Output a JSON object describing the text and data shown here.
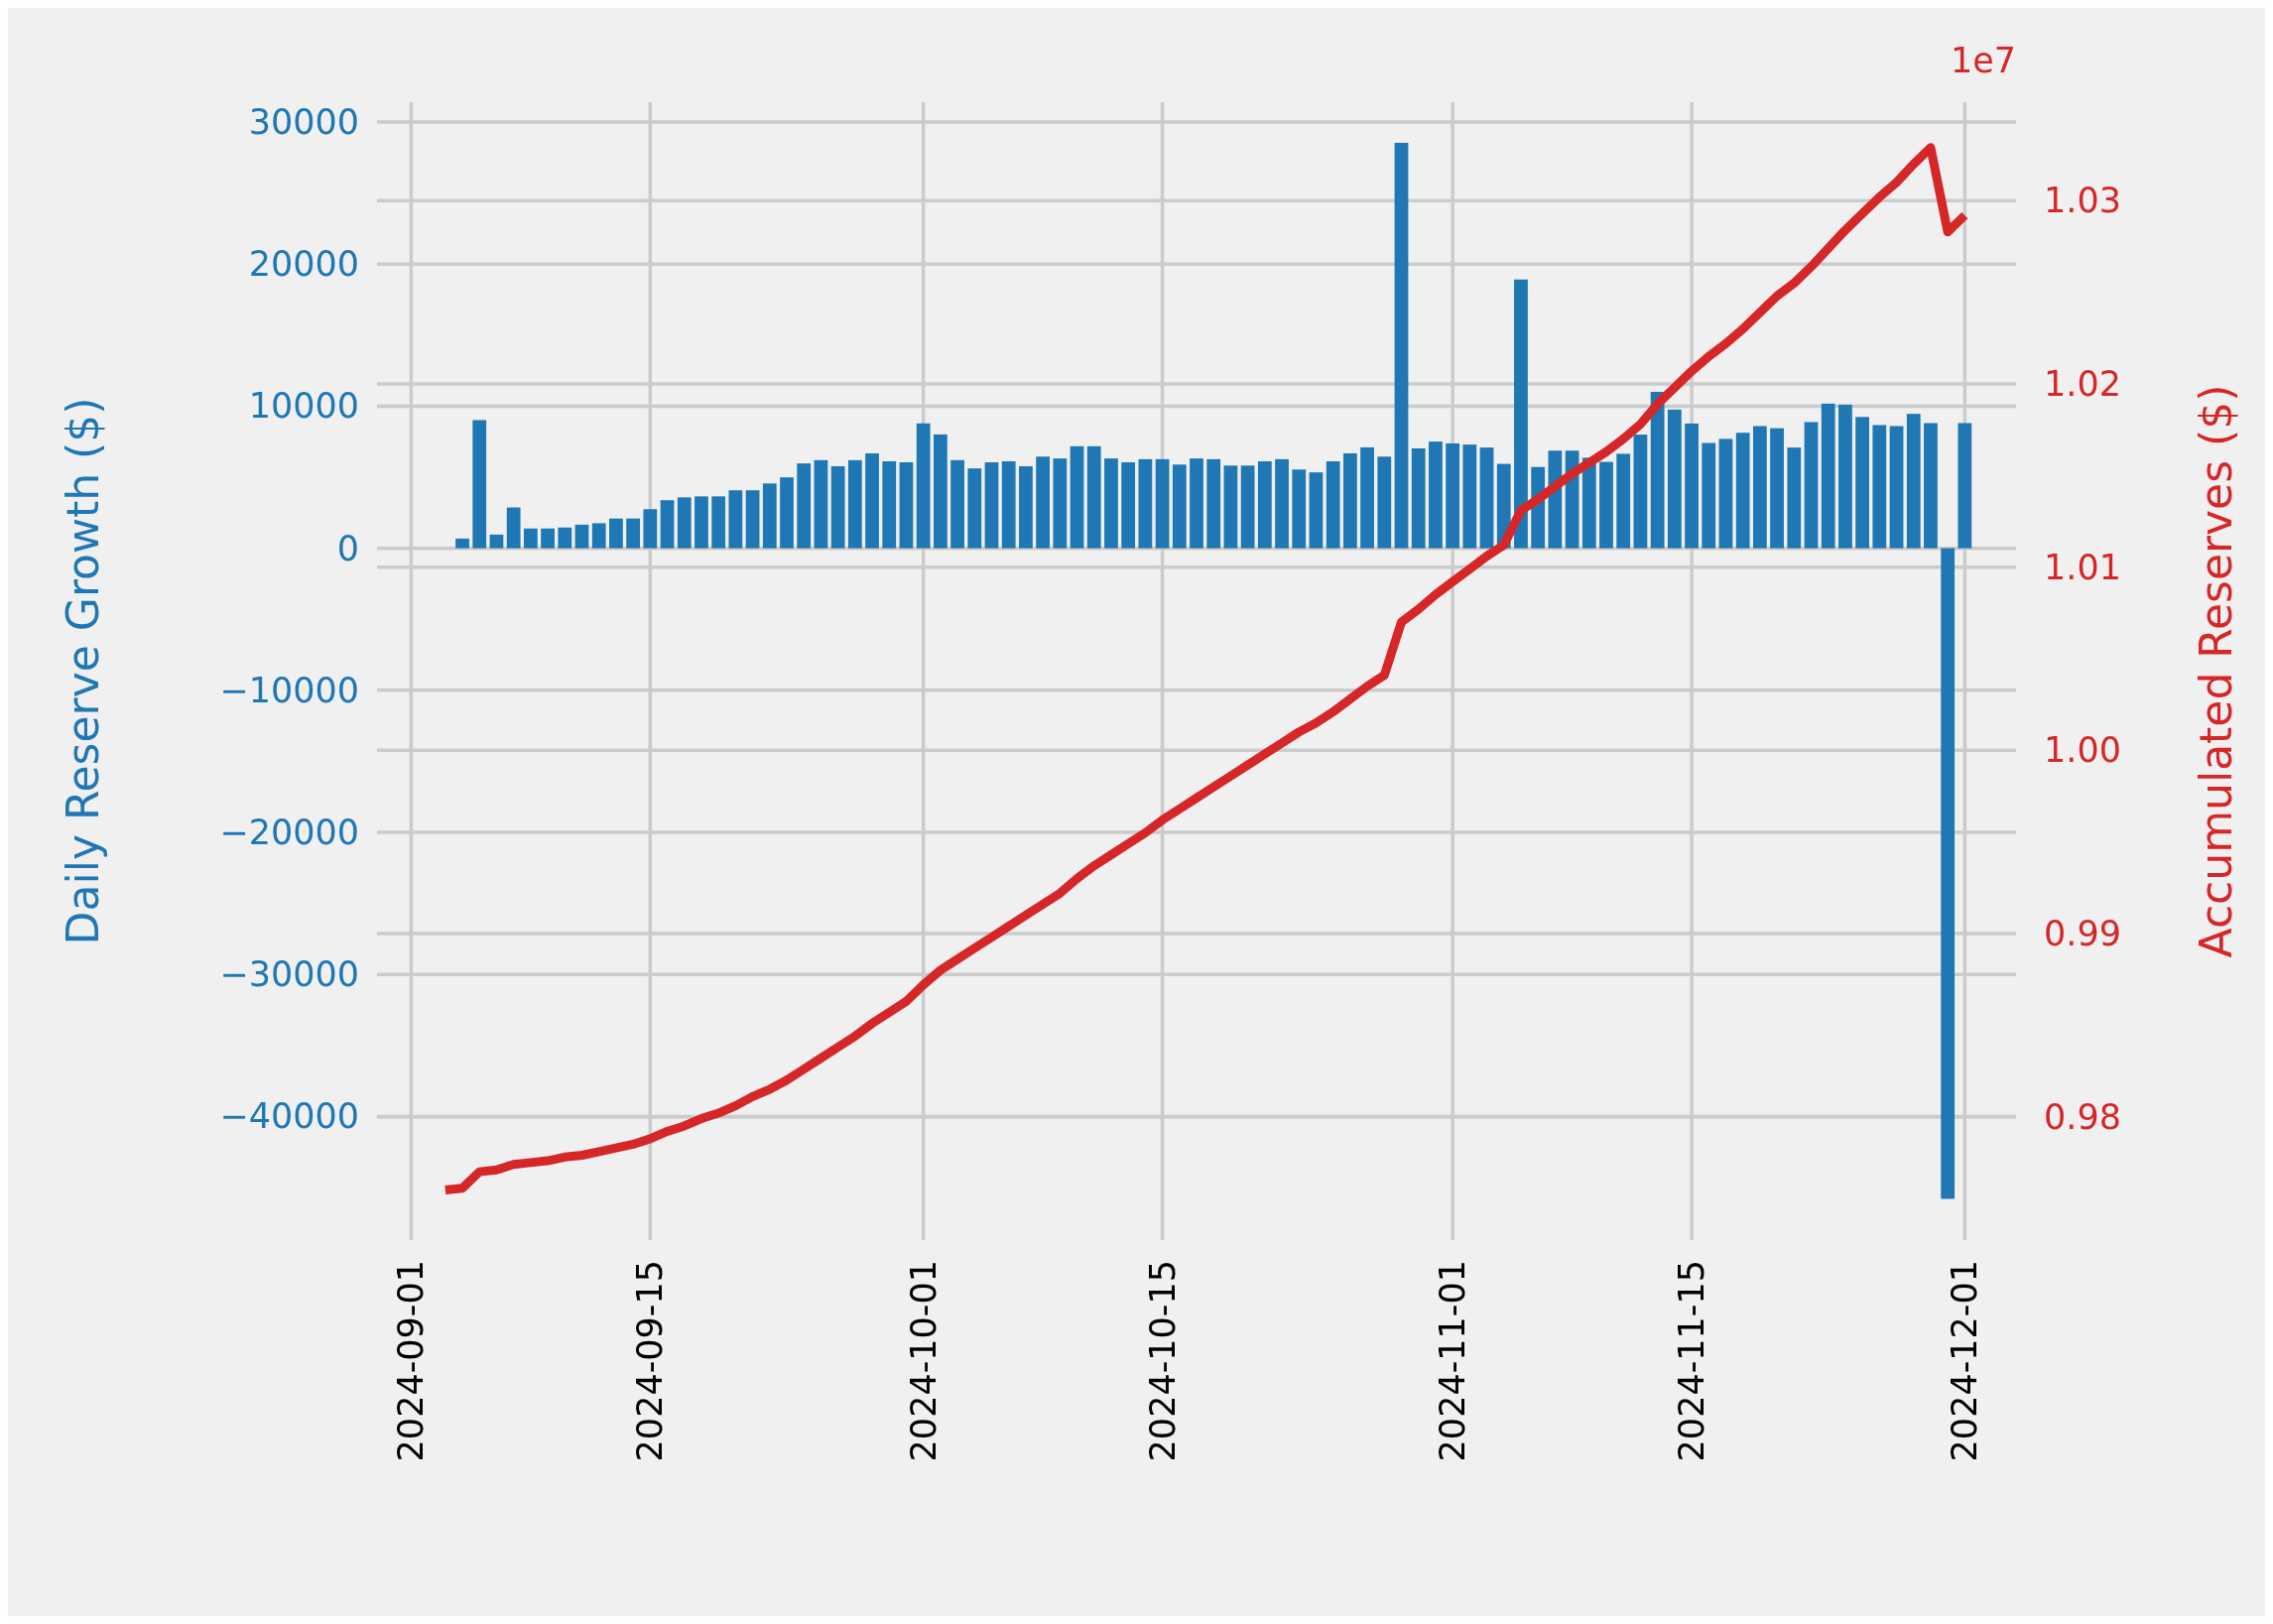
{
  "chart_data": {
    "type": "bar",
    "xlabel": null,
    "ylabel": "Daily Reserve Growth ($)",
    "y2label": "Accumulated Reserves ($)",
    "annotations": [
      "1e7"
    ],
    "grid": true,
    "xlim": [
      "2024-08-30",
      "2024-12-04"
    ],
    "xticks": [
      "2024-09-01",
      "2024-09-15",
      "2024-10-01",
      "2024-10-15",
      "2024-11-01",
      "2024-11-15",
      "2024-12-01"
    ],
    "ylim": [
      -48700,
      31400
    ],
    "yticks": [
      -40000,
      -30000,
      -20000,
      -10000,
      0,
      10000,
      20000,
      30000
    ],
    "y2lim": [
      0.97327,
      1.03538
    ],
    "y2ticks": [
      0.98,
      0.99,
      {
        "value": 1,
        "label": "1.00"
      },
      1.01,
      1.02,
      1.03
    ],
    "series": [
      {
        "color": "#1f77b4",
        "x": [
          "2024-09-04",
          "2024-09-05",
          "2024-09-06",
          "2024-09-07",
          "2024-09-08",
          "2024-09-09",
          "2024-09-10",
          "2024-09-11",
          "2024-09-12",
          "2024-09-13",
          "2024-09-14",
          "2024-09-15",
          "2024-09-16",
          "2024-09-17",
          "2024-09-18",
          "2024-09-19",
          "2024-09-20",
          "2024-09-21",
          "2024-09-22",
          "2024-09-23",
          "2024-09-24",
          "2024-09-25",
          "2024-09-26",
          "2024-09-27",
          "2024-09-28",
          "2024-09-29",
          "2024-09-30",
          "2024-10-01",
          "2024-10-02",
          "2024-10-03",
          "2024-10-04",
          "2024-10-05",
          "2024-10-06",
          "2024-10-07",
          "2024-10-08",
          "2024-10-09",
          "2024-10-10",
          "2024-10-11",
          "2024-10-12",
          "2024-10-13",
          "2024-10-14",
          "2024-10-15",
          "2024-10-16",
          "2024-10-17",
          "2024-10-18",
          "2024-10-19",
          "2024-10-20",
          "2024-10-21",
          "2024-10-22",
          "2024-10-23",
          "2024-10-24",
          "2024-10-25",
          "2024-10-26",
          "2024-10-27",
          "2024-10-28",
          "2024-10-29",
          "2024-10-30",
          "2024-10-31",
          "2024-11-01",
          "2024-11-02",
          "2024-11-03",
          "2024-11-04",
          "2024-11-05",
          "2024-11-06",
          "2024-11-07",
          "2024-11-08",
          "2024-11-09",
          "2024-11-10",
          "2024-11-11",
          "2024-11-12",
          "2024-11-13",
          "2024-11-14",
          "2024-11-15",
          "2024-11-16",
          "2024-11-17",
          "2024-11-18",
          "2024-11-19",
          "2024-11-20",
          "2024-11-21",
          "2024-11-22",
          "2024-11-23",
          "2024-11-24",
          "2024-11-25",
          "2024-11-26",
          "2024-11-27",
          "2024-11-28",
          "2024-11-29",
          "2024-11-30",
          "2024-12-01"
        ],
        "values": [
          680,
          9020,
          960,
          2870,
          1390,
          1390,
          1460,
          1660,
          1760,
          2090,
          2090,
          2750,
          3380,
          3580,
          3650,
          3650,
          4080,
          4080,
          4560,
          4990,
          5970,
          6200,
          5770,
          6200,
          6680,
          6120,
          6050,
          8790,
          8010,
          6200,
          5620,
          6050,
          6120,
          5770,
          6450,
          6320,
          7180,
          7180,
          6320,
          6050,
          6270,
          6270,
          5890,
          6320,
          6270,
          5820,
          5820,
          6120,
          6270,
          5540,
          5340,
          6120,
          6680,
          7100,
          6450,
          28540,
          7030,
          7510,
          7380,
          7300,
          7090,
          5940,
          18920,
          5720,
          6870,
          6870,
          6370,
          6080,
          6650,
          8000,
          11010,
          9760,
          8780,
          7410,
          7700,
          8130,
          8600,
          8450,
          7090,
          8880,
          10180,
          10110,
          9240,
          8670,
          8600,
          9460,
          8810,
          -45800,
          8810
        ]
      },
      {
        "type": "line",
        "axis": "y2",
        "color": "#d62728",
        "x": [
          "2024-09-03",
          "2024-09-04",
          "2024-09-05",
          "2024-09-06",
          "2024-09-07",
          "2024-09-08",
          "2024-09-09",
          "2024-09-10",
          "2024-09-11",
          "2024-09-12",
          "2024-09-13",
          "2024-09-14",
          "2024-09-15",
          "2024-09-16",
          "2024-09-17",
          "2024-09-18",
          "2024-09-19",
          "2024-09-20",
          "2024-09-21",
          "2024-09-22",
          "2024-09-23",
          "2024-09-24",
          "2024-09-25",
          "2024-09-26",
          "2024-09-27",
          "2024-09-28",
          "2024-09-29",
          "2024-09-30",
          "2024-10-01",
          "2024-10-02",
          "2024-10-03",
          "2024-10-04",
          "2024-10-05",
          "2024-10-06",
          "2024-10-07",
          "2024-10-08",
          "2024-10-09",
          "2024-10-10",
          "2024-10-11",
          "2024-10-12",
          "2024-10-13",
          "2024-10-14",
          "2024-10-15",
          "2024-10-16",
          "2024-10-17",
          "2024-10-18",
          "2024-10-19",
          "2024-10-20",
          "2024-10-21",
          "2024-10-22",
          "2024-10-23",
          "2024-10-24",
          "2024-10-25",
          "2024-10-26",
          "2024-10-27",
          "2024-10-28",
          "2024-10-29",
          "2024-10-30",
          "2024-10-31",
          "2024-11-01",
          "2024-11-02",
          "2024-11-03",
          "2024-11-04",
          "2024-11-05",
          "2024-11-06",
          "2024-11-07",
          "2024-11-08",
          "2024-11-09",
          "2024-11-10",
          "2024-11-11",
          "2024-11-12",
          "2024-11-13",
          "2024-11-14",
          "2024-11-15",
          "2024-11-16",
          "2024-11-17",
          "2024-11-18",
          "2024-11-19",
          "2024-11-20",
          "2024-11-21",
          "2024-11-22",
          "2024-11-23",
          "2024-11-24",
          "2024-11-25",
          "2024-11-26",
          "2024-11-27",
          "2024-11-28",
          "2024-11-29",
          "2024-11-30",
          "2024-12-01"
        ],
        "values": [
          0.976,
          0.9761,
          0.977,
          0.9771,
          0.9774,
          0.9775,
          0.9776,
          0.9778,
          0.9779,
          0.9781,
          0.9783,
          0.9785,
          0.9788,
          0.9792,
          0.9795,
          0.9799,
          0.9802,
          0.9806,
          0.9811,
          0.9815,
          0.982,
          0.9826,
          0.9832,
          0.9838,
          0.9844,
          0.9851,
          0.9857,
          0.9863,
          0.9872,
          0.988,
          0.9886,
          0.9892,
          0.9898,
          0.9904,
          0.991,
          0.9916,
          0.9922,
          0.993,
          0.9937,
          0.9943,
          0.9949,
          0.9955,
          0.9962,
          0.9968,
          0.9974,
          0.998,
          0.9986,
          0.9992,
          0.9998,
          1.0004,
          1.001,
          1.0015,
          1.0021,
          1.0028,
          1.0035,
          1.0041,
          1.007,
          1.0077,
          1.0085,
          1.0092,
          1.0099,
          1.0106,
          1.0112,
          1.0131,
          1.0137,
          1.0144,
          1.0151,
          1.0157,
          1.0163,
          1.017,
          1.0178,
          1.0189,
          1.0198,
          1.0207,
          1.0215,
          1.0222,
          1.023,
          1.0239,
          1.0248,
          1.0255,
          1.0264,
          1.0274,
          1.0284,
          1.0293,
          1.0302,
          1.031,
          1.032,
          1.0329,
          1.0283,
          1.0292
        ]
      }
    ]
  }
}
